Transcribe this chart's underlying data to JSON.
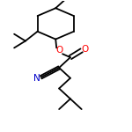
{
  "background_color": "#ffffff",
  "line_color": "#000000",
  "atom_colors": {
    "O": "#ff0000",
    "N": "#0000cc"
  },
  "line_width": 1.3,
  "font_size": 7.5,
  "figsize": [
    1.5,
    1.5
  ],
  "dpi": 100
}
